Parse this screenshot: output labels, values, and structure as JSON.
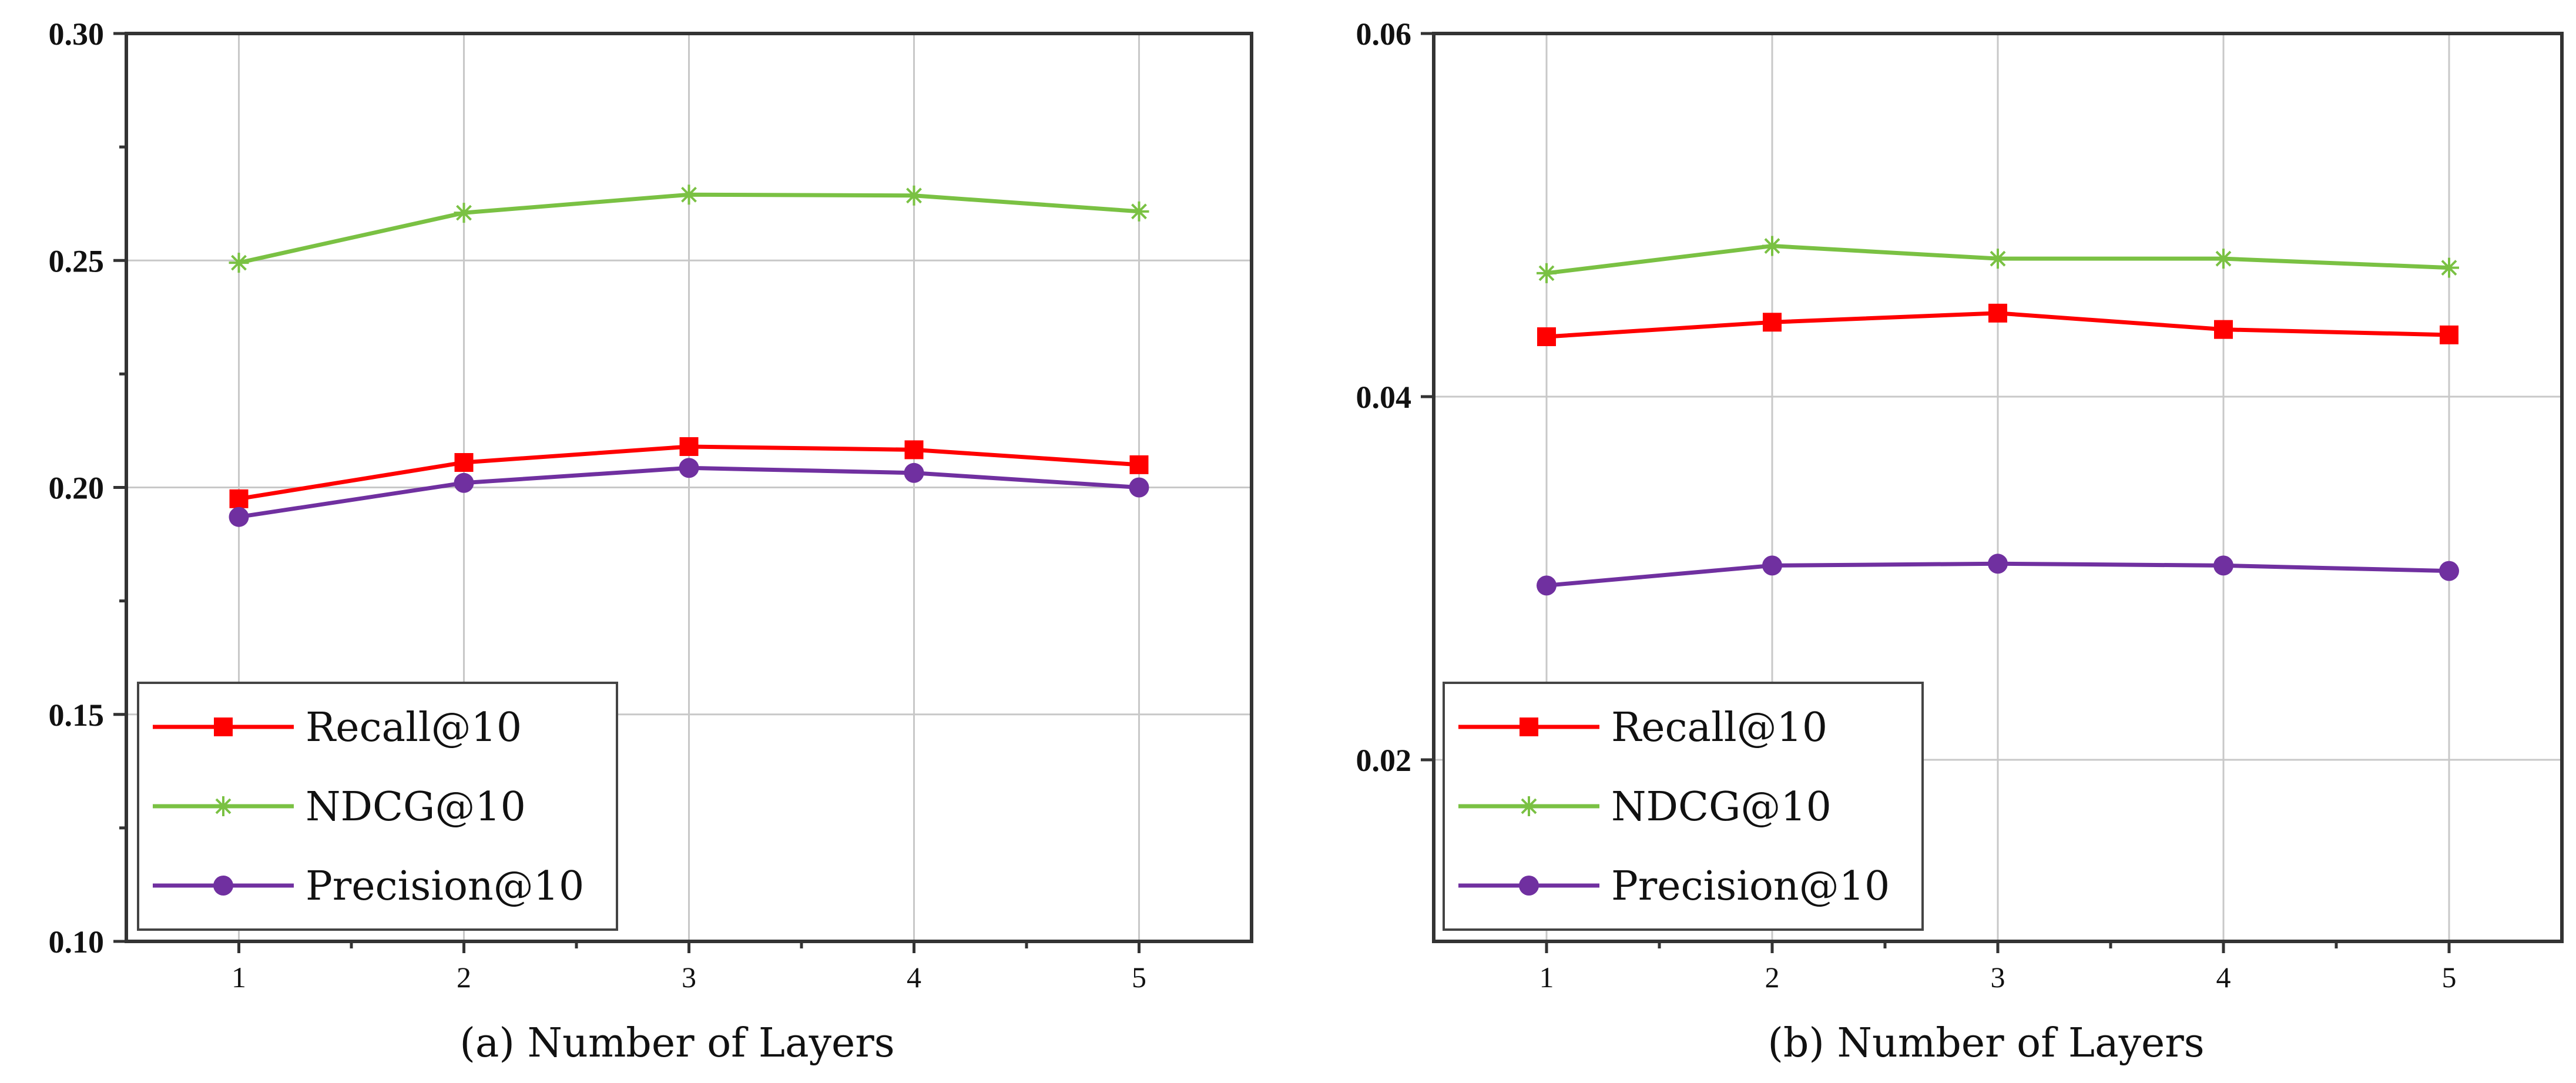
{
  "chart_data": [
    {
      "type": "line",
      "caption_tag": "(a)",
      "xlabel": "Number of Layers",
      "x": [
        1,
        2,
        3,
        4,
        5
      ],
      "xlim": [
        0.5,
        5.5
      ],
      "ylim": [
        0.1,
        0.3
      ],
      "y_ticks": [
        "0.10",
        "0.15",
        "0.20",
        "0.25",
        "0.30"
      ],
      "legend_position": "bottom-left",
      "series": [
        {
          "name": "Recall@10",
          "color": "#ff0000",
          "marker": "square",
          "values": [
            0.1975,
            0.2055,
            0.209,
            0.2083,
            0.205
          ]
        },
        {
          "name": "NDCG@10",
          "color": "#7ac143",
          "marker": "asterisk",
          "values": [
            0.2495,
            0.2605,
            0.2645,
            0.2643,
            0.2608
          ]
        },
        {
          "name": "Precision@10",
          "color": "#7030a0",
          "marker": "circle",
          "values": [
            0.1935,
            0.201,
            0.2043,
            0.2032,
            0.2
          ]
        }
      ]
    },
    {
      "type": "line",
      "caption_tag": "(b)",
      "xlabel": "Number of Layers",
      "x": [
        1,
        2,
        3,
        4,
        5
      ],
      "xlim": [
        0.5,
        5.5
      ],
      "ylim": [
        0.01,
        0.06
      ],
      "y_ticks": [
        "0.02",
        "0.04",
        "0.06"
      ],
      "legend_position": "bottom-left",
      "series": [
        {
          "name": "Recall@10",
          "color": "#ff0000",
          "marker": "square",
          "values": [
            0.0433,
            0.0441,
            0.0446,
            0.0437,
            0.0434
          ]
        },
        {
          "name": "NDCG@10",
          "color": "#7ac143",
          "marker": "asterisk",
          "values": [
            0.0468,
            0.0483,
            0.0476,
            0.0476,
            0.0471
          ]
        },
        {
          "name": "Precision@10",
          "color": "#7030a0",
          "marker": "circle",
          "values": [
            0.0296,
            0.0307,
            0.0308,
            0.0307,
            0.0304
          ]
        }
      ]
    }
  ]
}
